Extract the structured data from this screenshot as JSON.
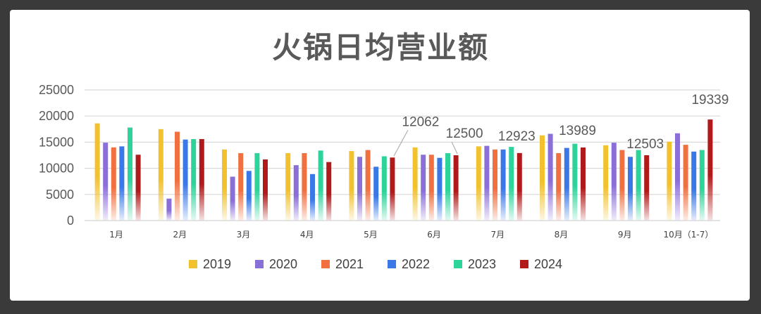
{
  "chart_data": {
    "type": "bar",
    "title": "火锅日均营业额",
    "xlabel": "",
    "ylabel": "",
    "ylim": [
      0,
      25000
    ],
    "yticks": [
      "0",
      "5000",
      "10000",
      "15000",
      "20000",
      "25000"
    ],
    "categories": [
      "1月",
      "2月",
      "3月",
      "4月",
      "5月",
      "6月",
      "7月",
      "8月",
      "9月",
      "10月（1-7）"
    ],
    "series": [
      {
        "name": "2019",
        "color": "#f2c12e",
        "values": [
          18600,
          17500,
          13600,
          12900,
          13300,
          14000,
          14200,
          16300,
          14400,
          15100
        ]
      },
      {
        "name": "2020",
        "color": "#8b6fd9",
        "values": [
          14900,
          4200,
          8400,
          10600,
          12200,
          12600,
          14300,
          16600,
          14900,
          16700
        ]
      },
      {
        "name": "2021",
        "color": "#f07040",
        "values": [
          14000,
          17000,
          12900,
          12900,
          13500,
          12600,
          13600,
          12900,
          13500,
          14500
        ]
      },
      {
        "name": "2022",
        "color": "#3a78e8",
        "values": [
          14200,
          15500,
          9500,
          8900,
          10300,
          12000,
          13600,
          13900,
          12200,
          13200
        ]
      },
      {
        "name": "2023",
        "color": "#2ed39a",
        "values": [
          17800,
          15600,
          12900,
          13400,
          12300,
          12900,
          14100,
          14700,
          13500,
          13500
        ]
      },
      {
        "name": "2024",
        "color": "#b01a1a",
        "values": [
          12600,
          15600,
          11700,
          11200,
          12062,
          12500,
          12923,
          13989,
          12503,
          19339
        ]
      }
    ],
    "data_labels": [
      {
        "series": "2024",
        "category": "5月",
        "text": "12062"
      },
      {
        "series": "2024",
        "category": "6月",
        "text": "12500"
      },
      {
        "series": "2024",
        "category": "7月",
        "text": "12923"
      },
      {
        "series": "2024",
        "category": "8月",
        "text": "13989"
      },
      {
        "series": "2024",
        "category": "9月",
        "text": "12503"
      },
      {
        "series": "2024",
        "category": "10月（1-7）",
        "text": "19339"
      }
    ],
    "grid": true,
    "legend": "bottom"
  }
}
